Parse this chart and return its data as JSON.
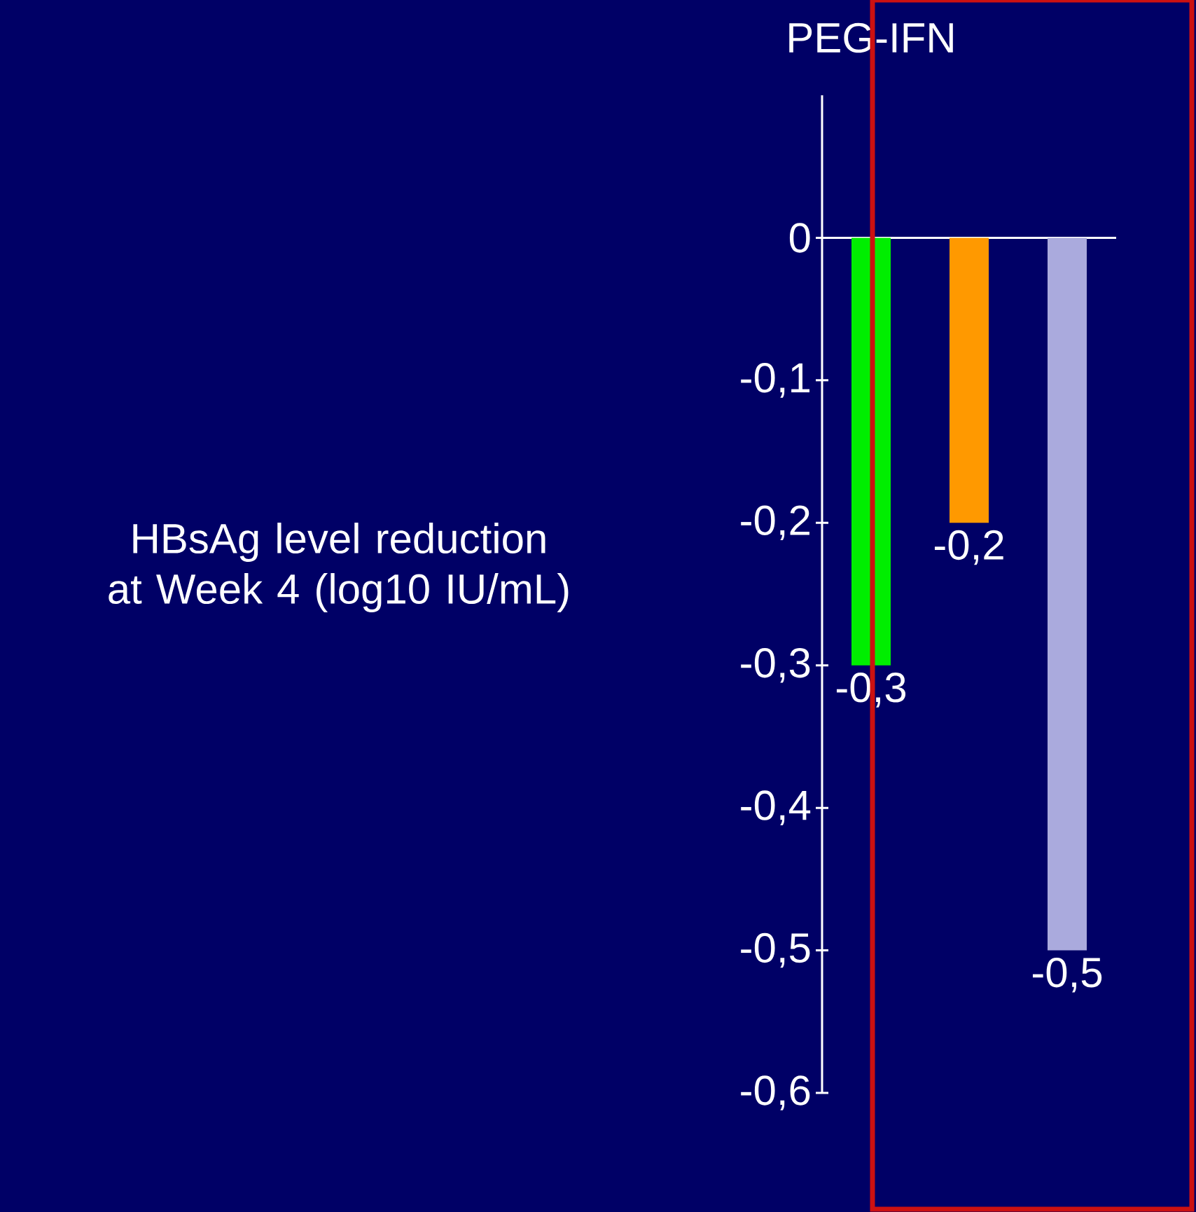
{
  "chart_data": {
    "type": "bar",
    "title": "PEG-IFN",
    "ylabel": "HBsAg level reduction at Week 4 (log10 IU/mL)",
    "categories": [
      null,
      null,
      null
    ],
    "values": [
      -0.3,
      -0.2,
      -0.5
    ],
    "colors": [
      "#00ee00",
      "#ff9900",
      "#aaaadd"
    ],
    "value_labels": [
      "-0,3",
      "-0,2",
      "-0,5"
    ],
    "ylim": [
      -0.6,
      0.1
    ],
    "yticks": [
      {
        "value": 0,
        "label": "0"
      },
      {
        "value": -0.1,
        "label": "-0,1"
      },
      {
        "value": -0.2,
        "label": "-0,2"
      },
      {
        "value": -0.3,
        "label": "-0,3"
      },
      {
        "value": -0.4,
        "label": "-0,4"
      },
      {
        "value": -0.5,
        "label": "-0,5"
      },
      {
        "value": -0.6,
        "label": "-0,6"
      }
    ]
  }
}
